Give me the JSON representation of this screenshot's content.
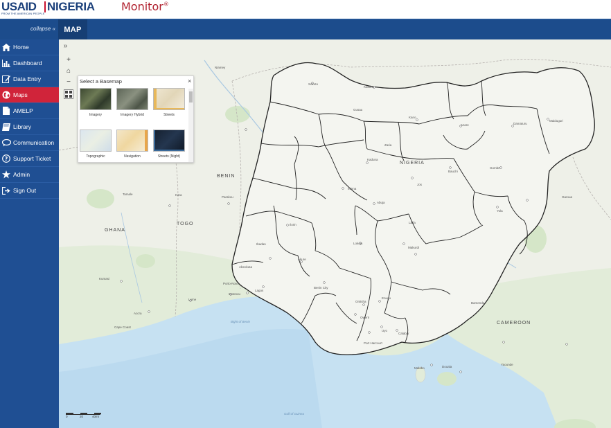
{
  "header": {
    "brand_usaid": "USAID",
    "brand_nigeria": "NIGERIA",
    "brand_tagline": "FROM THE AMERICAN PEOPLE",
    "product": "Monitor",
    "product_mark": "®"
  },
  "topbar": {
    "collapse_label": "collapse «",
    "page_title": "MAP"
  },
  "sidebar": {
    "active_index": 3,
    "items": [
      {
        "label": "Home",
        "icon": "home-icon"
      },
      {
        "label": "Dashboard",
        "icon": "bar-chart-icon"
      },
      {
        "label": "Data Entry",
        "icon": "edit-icon"
      },
      {
        "label": "Maps",
        "icon": "globe-icon"
      },
      {
        "label": "AMELP",
        "icon": "document-icon"
      },
      {
        "label": "Library",
        "icon": "book-icon"
      },
      {
        "label": "Communication",
        "icon": "chat-icon"
      },
      {
        "label": "Support Ticket",
        "icon": "question-icon"
      },
      {
        "label": "Admin",
        "icon": "star-icon"
      },
      {
        "label": "Sign Out",
        "icon": "sign-out-icon"
      }
    ]
  },
  "map": {
    "expand_icon": "»",
    "zoom_in": "+",
    "home": "⌂",
    "zoom_out": "−",
    "basemap": {
      "title": "Select a Basemap",
      "close": "×",
      "options": [
        {
          "label": "Imagery",
          "color": "#4b5a3a"
        },
        {
          "label": "Imagery Hybrid",
          "color": "#6d7566"
        },
        {
          "label": "Streets",
          "color": "#e8dfc8"
        },
        {
          "label": "Topographic",
          "color": "#d7e3ec"
        },
        {
          "label": "Navigation",
          "color": "#efe3c6"
        },
        {
          "label": "Streets (Night)",
          "color": "#1c2a40"
        }
      ]
    },
    "labels": {
      "nigeria": "NIGERIA",
      "benin": "BENIN",
      "togo": "TOGO",
      "ghana": "GHANA",
      "cameroon": "CAMEROON",
      "abuja": "Abuja",
      "kano": "Kano",
      "kaduna": "Kaduna",
      "lagos": "Lagos",
      "ibadan": "Ibadan",
      "benin_city": "Benin City",
      "port_harcourt": "Port Harcourt",
      "onitsha": "Onitsha",
      "enugu": "Enugu",
      "owerri": "Owerri",
      "uyo": "Uyo",
      "calabar": "Calabar",
      "makurdi": "Makurdi",
      "jos": "Jos",
      "bauchi": "Bauchi",
      "gombe": "Gombe",
      "yola": "Yola",
      "maiduguri": "Maiduguri",
      "damaturu": "Damaturu",
      "azare": "Azare",
      "katsina": "Katsina",
      "sokoto": "Sokoto",
      "gusau": "Gusau",
      "zaria": "Zaria",
      "minna": "Minna",
      "ilorin": "Ilorin",
      "lokoja": "Lokoja",
      "lafia": "Lafia",
      "akure": "Akure",
      "abeokuta": "Abeokuta",
      "porto_novo": "Porto-Novo",
      "cotonou": "Cotonou",
      "lome": "Lome",
      "accra": "Accra",
      "kumasi": "Kumasi",
      "tamale": "Tamale",
      "parakou": "Parakou",
      "kara": "Kara",
      "niamey": "Niamey",
      "garoua": "Garoua",
      "bamenda": "Bamenda",
      "douala": "Douala",
      "yaounde": "Yaounde",
      "malabo": "Malabo",
      "bight": "Bight of Benin",
      "gulf": "Gulf of Guinea",
      "cape_coast": "Cape Coast"
    },
    "scale": {
      "a": "0",
      "b": "20",
      "c": "40mi"
    }
  }
}
